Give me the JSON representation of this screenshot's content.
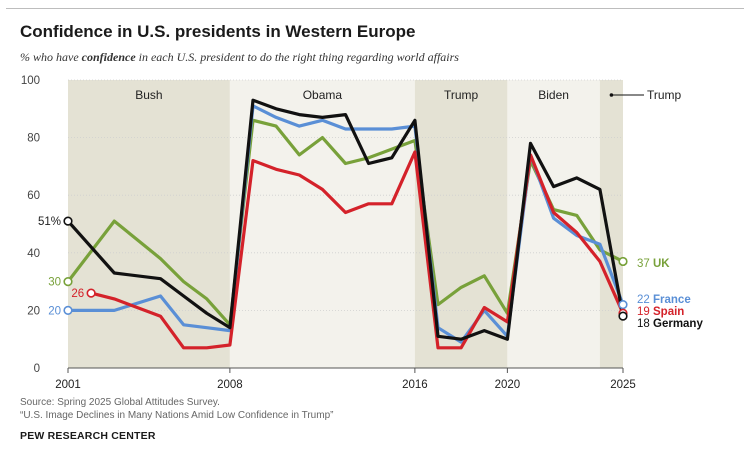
{
  "title": "Confidence in U.S. presidents in Western Europe",
  "subtitle": {
    "before": "% who have ",
    "emphasis": "confidence",
    "after": " in each U.S. president to do the right thing regarding world affairs"
  },
  "source_line1": "Source: Spring 2025 Global Attitudes Survey.",
  "source_line2": "“U.S. Image Declines in Many Nations Amid Low Confidence in Trump”",
  "organization": "PEW RESEARCH CENTER",
  "colors": {
    "uk": "#78a13a",
    "france": "#5a8fd6",
    "spain": "#d4222a",
    "germany": "#111111",
    "band_shaded": "#e4e2d4",
    "band_light": "#f3f2ec",
    "axis_text": "#444444"
  },
  "chart_data": {
    "type": "line",
    "title": "Confidence in U.S. presidents in Western Europe",
    "xlabel": "",
    "ylabel": "",
    "xlim": [
      2001,
      2025
    ],
    "ylim": [
      0,
      100
    ],
    "yticks": [
      0,
      20,
      40,
      60,
      80,
      100
    ],
    "xticks": [
      2001,
      2008,
      2016,
      2020,
      2025
    ],
    "eras": [
      {
        "name": "Bush",
        "start": 2001,
        "end": 2008,
        "shaded": true
      },
      {
        "name": "Obama",
        "start": 2008,
        "end": 2016,
        "shaded": false
      },
      {
        "name": "Trump",
        "start": 2016,
        "end": 2020,
        "shaded": true
      },
      {
        "name": "Biden",
        "start": 2020,
        "end": 2024,
        "shaded": false
      },
      {
        "name": "Trump",
        "start": 2024,
        "end": 2025,
        "shaded": true,
        "callout": true
      }
    ],
    "series": [
      {
        "name": "UK",
        "key": "uk",
        "x": [
          2001,
          2003,
          2005,
          2006,
          2007,
          2008,
          2009,
          2010,
          2011,
          2012,
          2013,
          2014,
          2015,
          2016,
          2017,
          2018,
          2019,
          2020,
          2021,
          2022,
          2023,
          2024,
          2025
        ],
        "values": [
          30,
          51,
          38,
          30,
          24,
          15,
          86,
          84,
          74,
          80,
          71,
          73,
          76,
          79,
          22,
          28,
          32,
          19,
          72,
          55,
          53,
          41,
          37
        ],
        "start_label": "30",
        "end_label": "37",
        "end_name": "UK"
      },
      {
        "name": "France",
        "key": "france",
        "x": [
          2001,
          2003,
          2005,
          2006,
          2007,
          2008,
          2009,
          2010,
          2011,
          2012,
          2013,
          2014,
          2015,
          2016,
          2017,
          2018,
          2019,
          2020,
          2021,
          2022,
          2023,
          2024,
          2025
        ],
        "values": [
          20,
          20,
          25,
          15,
          14,
          13,
          91,
          87,
          84,
          86,
          83,
          83,
          83,
          84,
          14,
          9,
          20,
          11,
          74,
          52,
          46,
          43,
          22
        ],
        "start_label": "20",
        "end_label": "22",
        "end_name": "France"
      },
      {
        "name": "Spain",
        "key": "spain",
        "x": [
          2002,
          2003,
          2005,
          2006,
          2007,
          2008,
          2009,
          2010,
          2011,
          2012,
          2013,
          2014,
          2015,
          2016,
          2017,
          2018,
          2019,
          2020,
          2021,
          2022,
          2023,
          2024,
          2025
        ],
        "values": [
          26,
          24,
          18,
          7,
          7,
          8,
          72,
          69,
          67,
          62,
          54,
          57,
          57,
          75,
          7,
          7,
          21,
          16,
          74,
          54,
          47,
          37,
          19
        ],
        "start_label": "26",
        "end_label": "19",
        "end_name": "Spain"
      },
      {
        "name": "Germany",
        "key": "germany",
        "x": [
          2001,
          2003,
          2005,
          2006,
          2007,
          2008,
          2009,
          2010,
          2011,
          2012,
          2013,
          2014,
          2015,
          2016,
          2017,
          2018,
          2019,
          2020,
          2021,
          2022,
          2023,
          2024,
          2025
        ],
        "values": [
          51,
          33,
          31,
          25,
          19,
          14,
          93,
          90,
          88,
          87,
          88,
          71,
          73,
          86,
          11,
          10,
          13,
          10,
          78,
          63,
          66,
          62,
          18
        ],
        "start_label": "51%",
        "end_label": "18",
        "end_name": "Germany"
      }
    ]
  }
}
